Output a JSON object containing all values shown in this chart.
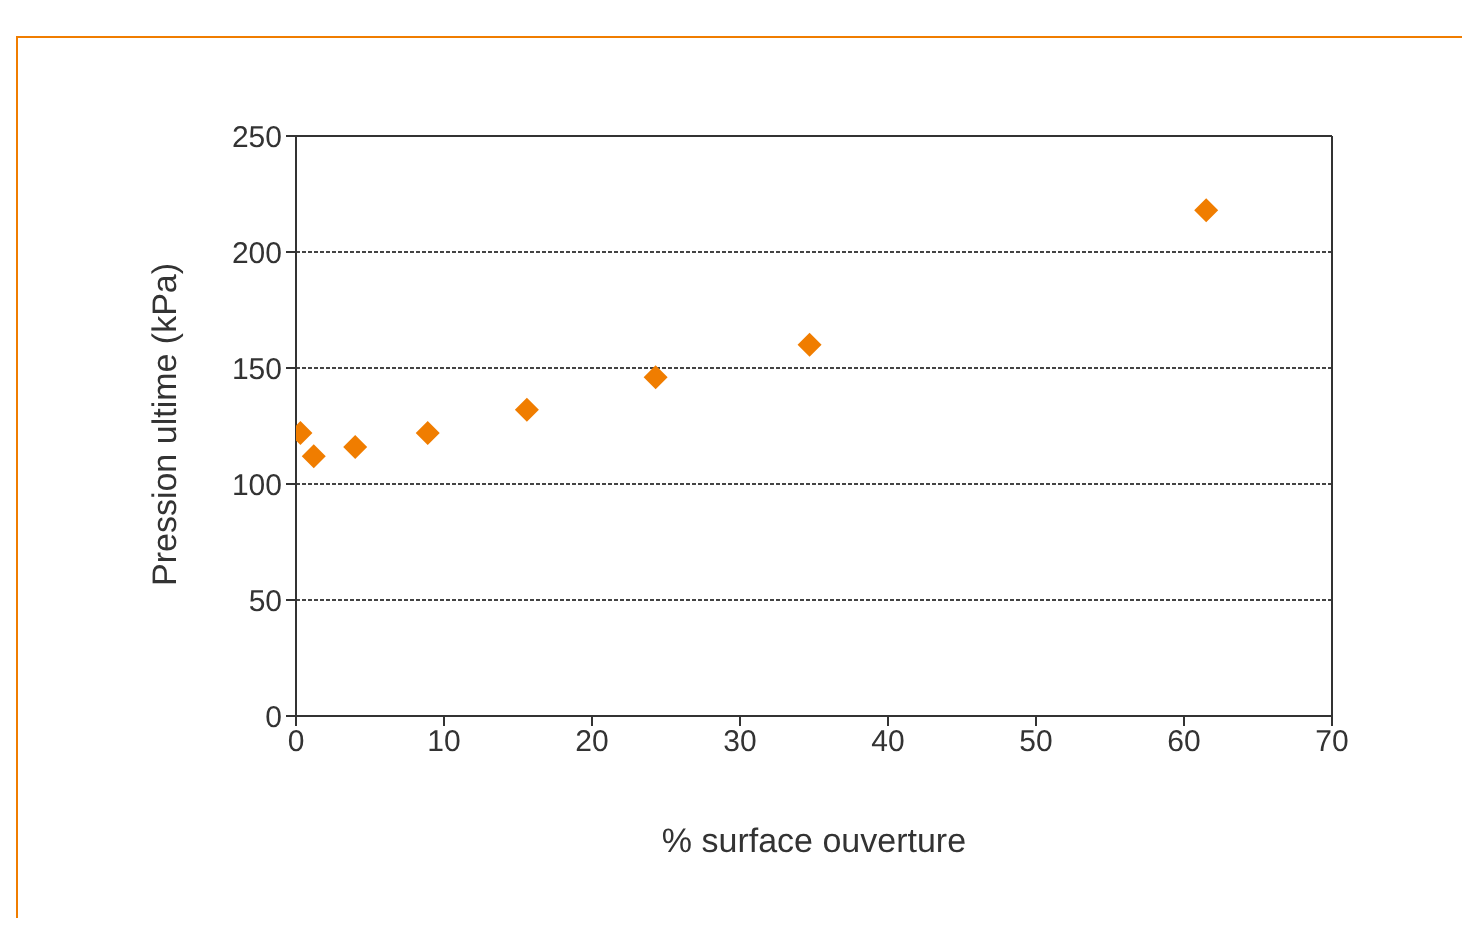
{
  "chart_data": {
    "type": "scatter",
    "xlabel": "% surface ouverture",
    "ylabel": "Pression ultime (kPa)",
    "x": [
      0.3,
      1.2,
      4.0,
      8.9,
      15.6,
      24.3,
      34.7,
      61.5
    ],
    "series": [
      {
        "color": "#f07d00",
        "values": [
          122,
          112,
          116,
          122,
          132,
          146,
          160,
          218
        ]
      }
    ],
    "xlim": [
      0,
      70
    ],
    "xticks": [
      0,
      10,
      20,
      30,
      40,
      50,
      60,
      70
    ],
    "ylim": [
      0,
      250
    ],
    "yticks": [
      0,
      50,
      100,
      150,
      200,
      250
    ],
    "grid": "y",
    "marker": "diamond",
    "legend": false
  }
}
